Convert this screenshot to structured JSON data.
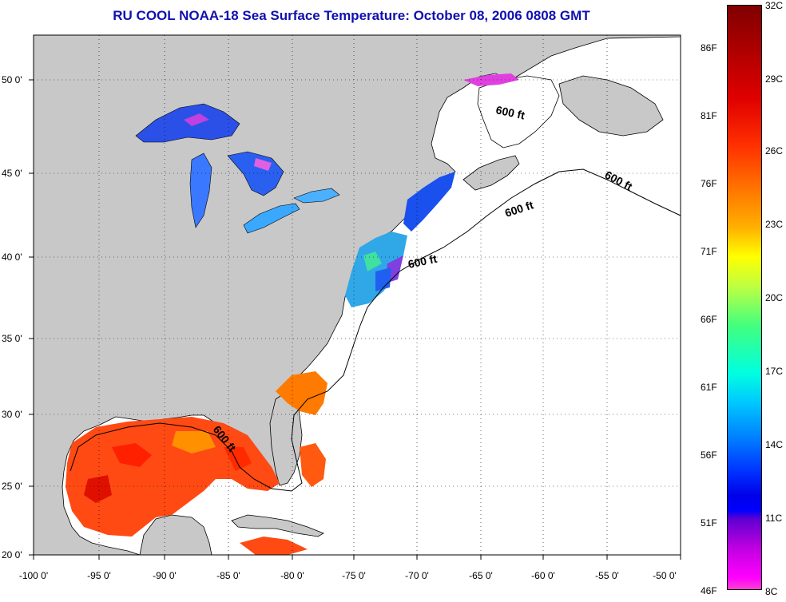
{
  "title": "RU COOL  NOAA-18  Sea Surface Temperature:  October 08, 2006 0808 GMT",
  "map": {
    "lat_labels": [
      "50 0'",
      "45 0'",
      "40 0'",
      "35 0'",
      "30 0'",
      "25 0'",
      "20 0'"
    ],
    "lon_labels": [
      "-100 0'",
      "-95 0'",
      "-90 0'",
      "-85 0'",
      "-80 0'",
      "-75 0'",
      "-70 0'",
      "-65 0'",
      "-60 0'",
      "-55 0'",
      "-50 0'"
    ],
    "contour_labels": [
      "600 ft",
      "600 ft",
      "600 ft",
      "600 ft",
      "600 ft"
    ],
    "colors": {
      "land": "#c8c8c8",
      "ocean": "#ffffff",
      "grid": "#000000",
      "title": "#1010b0"
    }
  },
  "colorbar": {
    "fahrenheit_labels": [
      "86F",
      "81F",
      "76F",
      "71F",
      "66F",
      "61F",
      "56F",
      "51F",
      "46F"
    ],
    "celsius_labels": [
      "32C",
      "29C",
      "26C",
      "23C",
      "20C",
      "17C",
      "14C",
      "11C",
      "8C"
    ]
  }
}
